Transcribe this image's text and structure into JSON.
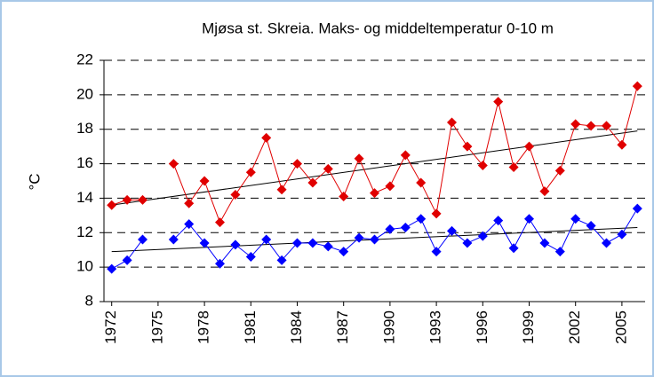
{
  "chart_data": {
    "type": "line",
    "title": "Mjøsa st. Skreia. Maks- og middeltemperatur 0-10 m",
    "y_label": "°C",
    "x": [
      1972,
      1973,
      1974,
      1975,
      1976,
      1977,
      1978,
      1979,
      1980,
      1981,
      1982,
      1983,
      1984,
      1985,
      1986,
      1987,
      1988,
      1989,
      1990,
      1991,
      1992,
      1993,
      1994,
      1995,
      1996,
      1997,
      1998,
      1999,
      2000,
      2001,
      2002,
      2003,
      2004,
      2005,
      2006
    ],
    "series": [
      {
        "color": "#e00000",
        "values": [
          13.6,
          13.9,
          13.9,
          null,
          16.0,
          13.7,
          15.0,
          12.6,
          14.2,
          15.5,
          17.5,
          14.5,
          16.0,
          14.9,
          15.7,
          14.1,
          16.3,
          14.3,
          14.7,
          16.5,
          14.9,
          13.1,
          18.4,
          17.0,
          15.9,
          19.6,
          15.8,
          17.0,
          14.4,
          15.6,
          18.3,
          18.2,
          18.2,
          17.1,
          20.5
        ]
      },
      {
        "color": "#0000ff",
        "values": [
          9.9,
          10.4,
          11.6,
          null,
          11.6,
          12.5,
          11.4,
          10.2,
          11.3,
          10.6,
          11.6,
          10.4,
          11.4,
          11.4,
          11.2,
          10.9,
          11.7,
          11.6,
          12.2,
          12.3,
          12.8,
          10.9,
          12.1,
          11.4,
          11.8,
          12.7,
          11.1,
          12.8,
          11.4,
          10.9,
          12.8,
          12.4,
          11.4,
          11.9,
          13.4
        ]
      }
    ],
    "trend_lines": [
      {
        "color": "#000000",
        "x": [
          1972,
          2006
        ],
        "values": [
          13.6,
          17.9
        ]
      },
      {
        "color": "#000000",
        "x": [
          1972,
          2006
        ],
        "values": [
          10.9,
          12.3
        ]
      }
    ],
    "xlim": [
      1971.5,
      2006.5
    ],
    "xticks": [
      1972,
      1975,
      1978,
      1981,
      1984,
      1987,
      1990,
      1993,
      1996,
      1999,
      2002,
      2005
    ],
    "ylim": [
      8,
      22
    ],
    "yticks": [
      8,
      10,
      12,
      14,
      16,
      18,
      20,
      22
    ],
    "grid": true
  }
}
